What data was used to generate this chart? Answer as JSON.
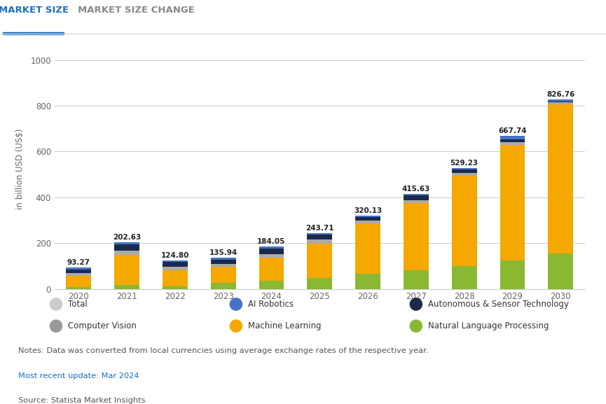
{
  "years": [
    "2020",
    "2021",
    "2022",
    "2023",
    "2024",
    "2025",
    "2026",
    "2027",
    "2028",
    "2029",
    "2030"
  ],
  "totals": [
    93.27,
    202.63,
    124.8,
    135.94,
    184.05,
    243.71,
    320.13,
    415.63,
    529.23,
    667.74,
    826.76
  ],
  "segments": {
    "Natural Language Processing": [
      8.0,
      18.0,
      10.0,
      25.0,
      35.0,
      48.0,
      65.0,
      80.0,
      100.0,
      125.0,
      155.0
    ],
    "Machine Learning": [
      50.0,
      130.0,
      72.0,
      72.0,
      100.0,
      150.0,
      220.0,
      295.0,
      395.0,
      505.0,
      650.0
    ],
    "Computer Vision": [
      10.0,
      18.0,
      15.0,
      13.0,
      18.0,
      18.0,
      13.0,
      12.0,
      12.0,
      12.0,
      9.0
    ],
    "Autonomous & Sensor Technology": [
      16.0,
      28.0,
      20.0,
      18.0,
      22.0,
      20.0,
      15.0,
      20.0,
      14.0,
      12.0,
      5.0
    ],
    "AI Robotics": [
      9.27,
      8.63,
      7.8,
      7.94,
      9.05,
      7.71,
      7.13,
      8.63,
      8.23,
      13.74,
      7.76
    ]
  },
  "colors": {
    "Natural Language Processing": "#8ab833",
    "Machine Learning": "#f5a800",
    "Computer Vision": "#aaaaaa",
    "Autonomous & Sensor Technology": "#1b2a4a",
    "AI Robotics": "#4472c4"
  },
  "legend_colors": {
    "Total": "#cccccc",
    "AI Robotics": "#4472c4",
    "Autonomous & Sensor Technology": "#1b2a4a",
    "Computer Vision": "#999999",
    "Machine Learning": "#f5a800",
    "Natural Language Processing": "#8ab833"
  },
  "ylabel": "in billion USD (US$)",
  "ylim": [
    0,
    1050
  ],
  "yticks": [
    0,
    200,
    400,
    600,
    800,
    1000
  ],
  "background_color": "#ffffff",
  "grid_color": "#cccccc",
  "tab_active": "MARKET SIZE",
  "tab_inactive": "MARKET SIZE CHANGE",
  "notes": "Notes: Data was converted from local currencies using average exchange rates of the respective year.",
  "update": "Most recent update: Mar 2024",
  "source": "Source: Statista Market Insights"
}
